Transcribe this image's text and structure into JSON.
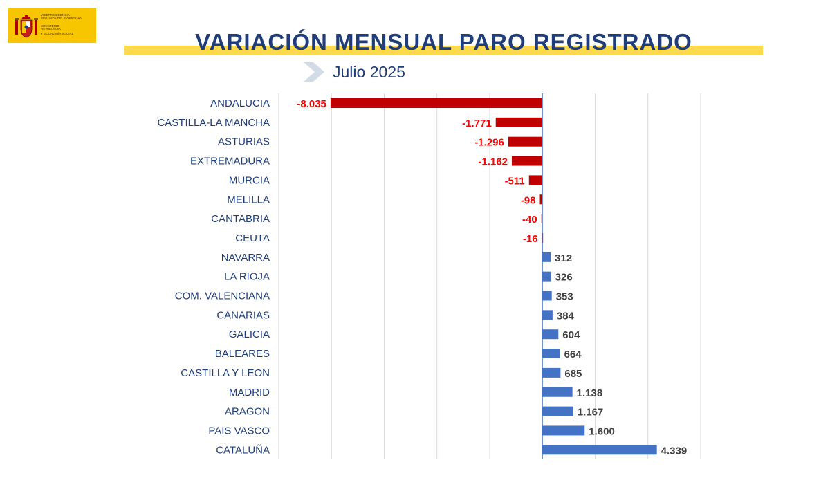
{
  "header": {
    "logo": {
      "line1": "VICEPRESIDENCIA",
      "line2": "SEGUNDA DEL GOBIERNO",
      "line3": "MINISTERIO",
      "line4": "DE TRABAJO",
      "line5": "Y ECONOMÍA SOCIAL",
      "background_color": "#f7c600"
    },
    "title": "VARIACIÓN MENSUAL PARO REGISTRADO",
    "subtitle": "Julio 2025",
    "subtitle_icon": "chevron-right-icon"
  },
  "chart_data": {
    "type": "bar",
    "orientation": "horizontal",
    "categories": [
      "ANDALUCIA",
      "CASTILLA-LA MANCHA",
      "ASTURIAS",
      "EXTREMADURA",
      "MURCIA",
      "MELILLA",
      "CANTABRIA",
      "CEUTA",
      "NAVARRA",
      "LA RIOJA",
      "COM. VALENCIANA",
      "CANARIAS",
      "GALICIA",
      "BALEARES",
      "CASTILLA Y LEON",
      "MADRID",
      "ARAGON",
      "PAIS VASCO",
      "CATALUÑA"
    ],
    "values": [
      -8035,
      -1771,
      -1296,
      -1162,
      -511,
      -98,
      -40,
      -16,
      312,
      326,
      353,
      384,
      604,
      664,
      685,
      1138,
      1167,
      1600,
      4339
    ],
    "labels": [
      "-8.035",
      "-1.771",
      "-1.296",
      "-1.162",
      "-511",
      "-98",
      "-40",
      "-16",
      "312",
      "326",
      "353",
      "384",
      "604",
      "664",
      "685",
      "1.138",
      "1.167",
      "1.600",
      "4.339"
    ],
    "xlim": [
      -10000,
      6000
    ],
    "grid": true,
    "negative_color": "#c00000",
    "positive_color": "#4472c4",
    "negative_label_color": "#ff0000",
    "positive_label_color": "#404040",
    "category_label_color": "#1f3d7a"
  }
}
